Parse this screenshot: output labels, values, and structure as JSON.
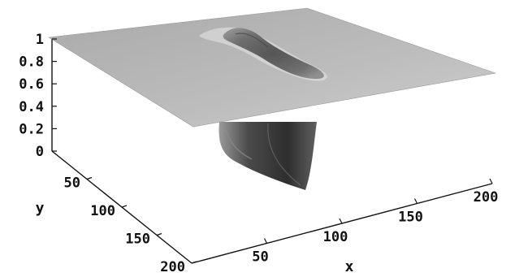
{
  "chart_data": {
    "type": "surface3d",
    "title": "",
    "xlabel": "x",
    "ylabel": "y",
    "zlabel": "",
    "xlim": [
      0,
      200
    ],
    "ylim": [
      0,
      200
    ],
    "zlim": [
      0,
      1
    ],
    "x_ticks": [
      "50",
      "100",
      "150",
      "200"
    ],
    "y_ticks": [
      "50",
      "100",
      "150",
      "200"
    ],
    "z_ticks": [
      "0",
      "0.2",
      "0.4",
      "0.6",
      "0.8",
      "1"
    ],
    "plane_level": 1,
    "well_min_level": 0,
    "surface_color": "#b3b3b3",
    "well_color": "#3a3a3a"
  }
}
